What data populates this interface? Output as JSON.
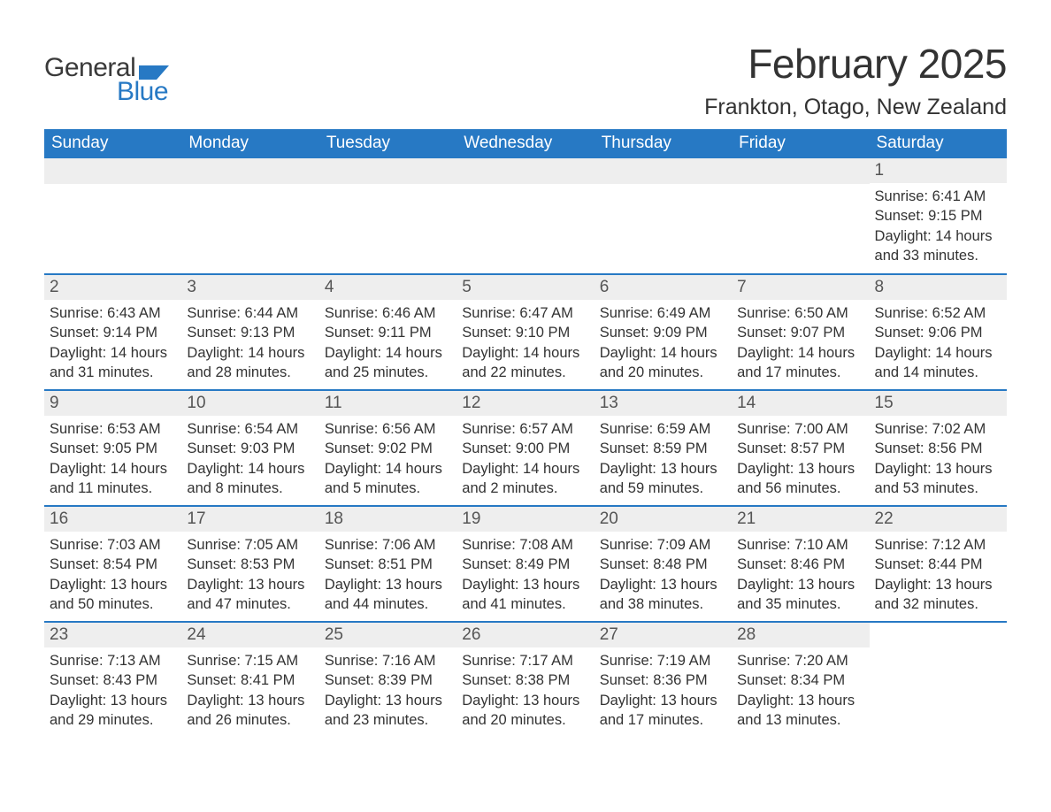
{
  "logo": {
    "general": "General",
    "blue": "Blue",
    "general_color": "#3a3a3a",
    "blue_color": "#2779c4",
    "flag_color": "#2779c4"
  },
  "title": "February 2025",
  "location": "Frankton, Otago, New Zealand",
  "colors": {
    "header_bg": "#2779c4",
    "header_text": "#ffffff",
    "daynum_bg": "#eeeeee",
    "daynum_text": "#555555",
    "body_text": "#333333",
    "week_divider": "#2779c4",
    "page_bg": "#ffffff"
  },
  "typography": {
    "title_fontsize": 46,
    "location_fontsize": 25,
    "weekday_fontsize": 19,
    "daynum_fontsize": 19,
    "body_fontsize": 16.5
  },
  "weekdays": [
    "Sunday",
    "Monday",
    "Tuesday",
    "Wednesday",
    "Thursday",
    "Friday",
    "Saturday"
  ],
  "weeks": [
    [
      null,
      null,
      null,
      null,
      null,
      null,
      {
        "day": "1",
        "sunrise": "Sunrise: 6:41 AM",
        "sunset": "Sunset: 9:15 PM",
        "daylight": "Daylight: 14 hours and 33 minutes."
      }
    ],
    [
      {
        "day": "2",
        "sunrise": "Sunrise: 6:43 AM",
        "sunset": "Sunset: 9:14 PM",
        "daylight": "Daylight: 14 hours and 31 minutes."
      },
      {
        "day": "3",
        "sunrise": "Sunrise: 6:44 AM",
        "sunset": "Sunset: 9:13 PM",
        "daylight": "Daylight: 14 hours and 28 minutes."
      },
      {
        "day": "4",
        "sunrise": "Sunrise: 6:46 AM",
        "sunset": "Sunset: 9:11 PM",
        "daylight": "Daylight: 14 hours and 25 minutes."
      },
      {
        "day": "5",
        "sunrise": "Sunrise: 6:47 AM",
        "sunset": "Sunset: 9:10 PM",
        "daylight": "Daylight: 14 hours and 22 minutes."
      },
      {
        "day": "6",
        "sunrise": "Sunrise: 6:49 AM",
        "sunset": "Sunset: 9:09 PM",
        "daylight": "Daylight: 14 hours and 20 minutes."
      },
      {
        "day": "7",
        "sunrise": "Sunrise: 6:50 AM",
        "sunset": "Sunset: 9:07 PM",
        "daylight": "Daylight: 14 hours and 17 minutes."
      },
      {
        "day": "8",
        "sunrise": "Sunrise: 6:52 AM",
        "sunset": "Sunset: 9:06 PM",
        "daylight": "Daylight: 14 hours and 14 minutes."
      }
    ],
    [
      {
        "day": "9",
        "sunrise": "Sunrise: 6:53 AM",
        "sunset": "Sunset: 9:05 PM",
        "daylight": "Daylight: 14 hours and 11 minutes."
      },
      {
        "day": "10",
        "sunrise": "Sunrise: 6:54 AM",
        "sunset": "Sunset: 9:03 PM",
        "daylight": "Daylight: 14 hours and 8 minutes."
      },
      {
        "day": "11",
        "sunrise": "Sunrise: 6:56 AM",
        "sunset": "Sunset: 9:02 PM",
        "daylight": "Daylight: 14 hours and 5 minutes."
      },
      {
        "day": "12",
        "sunrise": "Sunrise: 6:57 AM",
        "sunset": "Sunset: 9:00 PM",
        "daylight": "Daylight: 14 hours and 2 minutes."
      },
      {
        "day": "13",
        "sunrise": "Sunrise: 6:59 AM",
        "sunset": "Sunset: 8:59 PM",
        "daylight": "Daylight: 13 hours and 59 minutes."
      },
      {
        "day": "14",
        "sunrise": "Sunrise: 7:00 AM",
        "sunset": "Sunset: 8:57 PM",
        "daylight": "Daylight: 13 hours and 56 minutes."
      },
      {
        "day": "15",
        "sunrise": "Sunrise: 7:02 AM",
        "sunset": "Sunset: 8:56 PM",
        "daylight": "Daylight: 13 hours and 53 minutes."
      }
    ],
    [
      {
        "day": "16",
        "sunrise": "Sunrise: 7:03 AM",
        "sunset": "Sunset: 8:54 PM",
        "daylight": "Daylight: 13 hours and 50 minutes."
      },
      {
        "day": "17",
        "sunrise": "Sunrise: 7:05 AM",
        "sunset": "Sunset: 8:53 PM",
        "daylight": "Daylight: 13 hours and 47 minutes."
      },
      {
        "day": "18",
        "sunrise": "Sunrise: 7:06 AM",
        "sunset": "Sunset: 8:51 PM",
        "daylight": "Daylight: 13 hours and 44 minutes."
      },
      {
        "day": "19",
        "sunrise": "Sunrise: 7:08 AM",
        "sunset": "Sunset: 8:49 PM",
        "daylight": "Daylight: 13 hours and 41 minutes."
      },
      {
        "day": "20",
        "sunrise": "Sunrise: 7:09 AM",
        "sunset": "Sunset: 8:48 PM",
        "daylight": "Daylight: 13 hours and 38 minutes."
      },
      {
        "day": "21",
        "sunrise": "Sunrise: 7:10 AM",
        "sunset": "Sunset: 8:46 PM",
        "daylight": "Daylight: 13 hours and 35 minutes."
      },
      {
        "day": "22",
        "sunrise": "Sunrise: 7:12 AM",
        "sunset": "Sunset: 8:44 PM",
        "daylight": "Daylight: 13 hours and 32 minutes."
      }
    ],
    [
      {
        "day": "23",
        "sunrise": "Sunrise: 7:13 AM",
        "sunset": "Sunset: 8:43 PM",
        "daylight": "Daylight: 13 hours and 29 minutes."
      },
      {
        "day": "24",
        "sunrise": "Sunrise: 7:15 AM",
        "sunset": "Sunset: 8:41 PM",
        "daylight": "Daylight: 13 hours and 26 minutes."
      },
      {
        "day": "25",
        "sunrise": "Sunrise: 7:16 AM",
        "sunset": "Sunset: 8:39 PM",
        "daylight": "Daylight: 13 hours and 23 minutes."
      },
      {
        "day": "26",
        "sunrise": "Sunrise: 7:17 AM",
        "sunset": "Sunset: 8:38 PM",
        "daylight": "Daylight: 13 hours and 20 minutes."
      },
      {
        "day": "27",
        "sunrise": "Sunrise: 7:19 AM",
        "sunset": "Sunset: 8:36 PM",
        "daylight": "Daylight: 13 hours and 17 minutes."
      },
      {
        "day": "28",
        "sunrise": "Sunrise: 7:20 AM",
        "sunset": "Sunset: 8:34 PM",
        "daylight": "Daylight: 13 hours and 13 minutes."
      },
      null
    ]
  ]
}
